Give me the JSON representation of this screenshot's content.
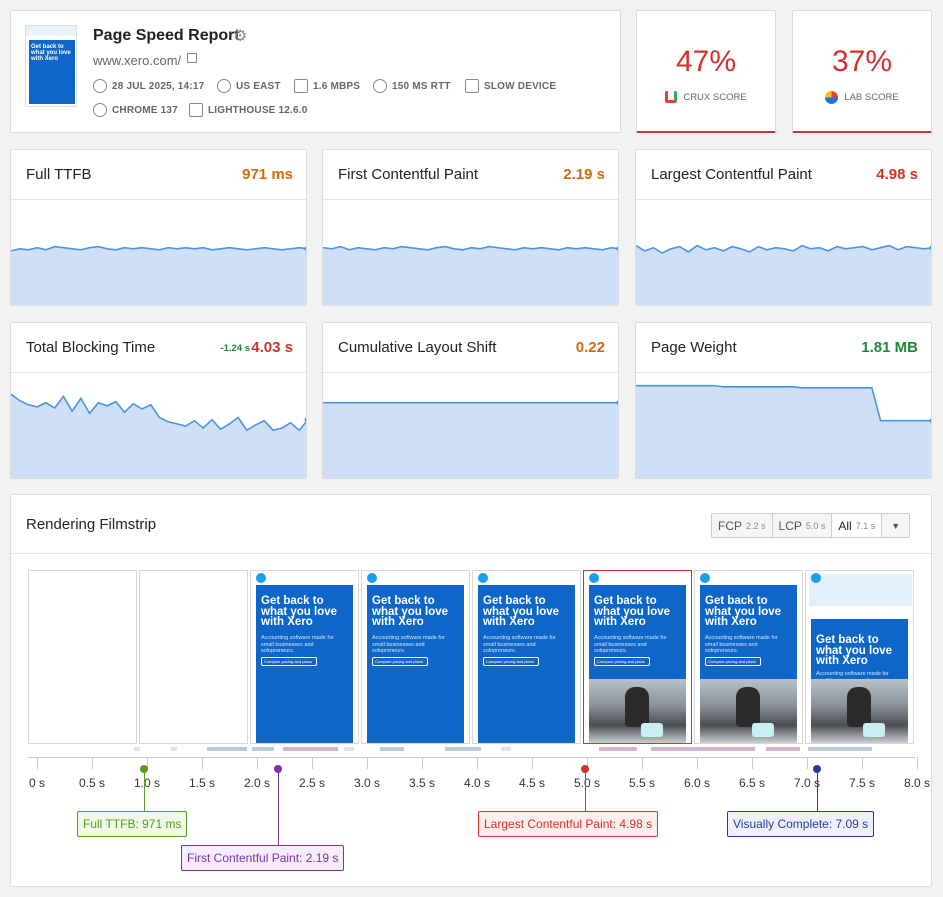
{
  "header": {
    "title": "Page Speed Report",
    "url": "www.xero.com/",
    "meta": {
      "date": "28 JUL 2025, 14:17",
      "location": "US EAST",
      "bandwidth": "1.6 MBPS",
      "rtt": "150 MS RTT",
      "device": "SLOW DEVICE",
      "browser": "CHROME 137",
      "lighthouse": "LIGHTHOUSE 12.6.0"
    },
    "thumbnail_text": "Get back to what you love with Xero"
  },
  "scores": {
    "crux": {
      "value": "47%",
      "label": "CRUX SCORE"
    },
    "lab": {
      "value": "37%",
      "label": "LAB SCORE"
    }
  },
  "metrics": [
    {
      "name": "Full TTFB",
      "value": "971 ms",
      "status": "orange",
      "trend": [
        52,
        54,
        53,
        55,
        53,
        56,
        55,
        54,
        53,
        55,
        56,
        54,
        53,
        55,
        54,
        55,
        54,
        53,
        55,
        54,
        55,
        54,
        55,
        53,
        54,
        55,
        54,
        53,
        54,
        55,
        54,
        53,
        54,
        55,
        54
      ]
    },
    {
      "name": "First Contentful Paint",
      "value": "2.19 s",
      "status": "orange",
      "trend": [
        55,
        54,
        56,
        53,
        55,
        54,
        53,
        55,
        54,
        56,
        55,
        54,
        53,
        55,
        56,
        54,
        53,
        55,
        54,
        56,
        55,
        54,
        53,
        55,
        54,
        55,
        54,
        53,
        55,
        54,
        55,
        54,
        53,
        55,
        54
      ]
    },
    {
      "name": "Largest Contentful Paint",
      "value": "4.98 s",
      "status": "red",
      "trend": [
        57,
        52,
        55,
        50,
        54,
        56,
        51,
        57,
        53,
        55,
        52,
        56,
        54,
        51,
        56,
        53,
        55,
        54,
        52,
        57,
        54,
        55,
        52,
        56,
        54,
        55,
        56,
        53,
        55,
        57,
        53,
        56,
        55,
        54,
        55
      ]
    },
    {
      "name": "Total Blocking Time",
      "value": "4.03 s",
      "delta": "-1.24 s",
      "status": "red",
      "trend": [
        80,
        74,
        70,
        68,
        72,
        67,
        78,
        64,
        76,
        62,
        72,
        69,
        73,
        63,
        71,
        66,
        70,
        58,
        54,
        52,
        50,
        55,
        48,
        56,
        47,
        52,
        58,
        46,
        51,
        55,
        46,
        48,
        53,
        46,
        56
      ]
    },
    {
      "name": "Cumulative Layout Shift",
      "value": "0.22",
      "status": "orange",
      "trend": [
        72,
        72,
        72,
        72,
        72,
        72,
        72,
        72,
        72,
        72,
        72,
        72,
        72,
        72,
        72,
        72,
        72,
        72,
        72,
        72,
        72,
        72,
        72,
        72,
        72,
        72,
        72,
        72,
        72,
        72,
        72,
        72,
        72,
        72,
        72
      ]
    },
    {
      "name": "Page Weight",
      "value": "1.81 MB",
      "status": "green",
      "trend": [
        88,
        88,
        88,
        88,
        88,
        88,
        88,
        88,
        88,
        88,
        87,
        87,
        87,
        87,
        87,
        87,
        87,
        87,
        87,
        86,
        86,
        86,
        86,
        86,
        86,
        86,
        86,
        86,
        55,
        55,
        55,
        55,
        55,
        55,
        55
      ]
    }
  ],
  "filmstrip": {
    "title": "Rendering Filmstrip",
    "toggles": [
      {
        "label": "FCP",
        "time": "2.2 s"
      },
      {
        "label": "LCP",
        "time": "5.0 s"
      },
      {
        "label": "All",
        "time": "7.1 s"
      }
    ],
    "dropdown_icon": "caret-down-icon",
    "frame_headline": "Get back to what you love with Xero",
    "frame_sub": "Accounting software made for small businesses and solopreneurs.",
    "frame_button": "Compare pricing and plans",
    "ticks": [
      "0 s",
      "0.5 s",
      "1.0 s",
      "1.5 s",
      "2.0 s",
      "2.5 s",
      "3.0 s",
      "3.5 s",
      "4.0 s",
      "4.5 s",
      "5.0 s",
      "5.5 s",
      "6.0 s",
      "6.5 s",
      "7.0 s",
      "7.5 s",
      "8.0 s"
    ],
    "markers": [
      {
        "label": "Full TTFB: 971 ms",
        "time": 0.971,
        "color": "#5a9a1f",
        "bg": "#f0f8e6"
      },
      {
        "label": "First Contentful Paint: 2.19 s",
        "time": 2.19,
        "color": "#7b32a8",
        "bg": "#f6ecfb"
      },
      {
        "label": "Largest Contentful Paint: 4.98 s",
        "time": 4.98,
        "color": "#d4312c",
        "bg": "#fdeeee"
      },
      {
        "label": "Visually Complete: 7.09 s",
        "time": 7.09,
        "color": "#2a3a9e",
        "bg": "#eef0fb"
      }
    ]
  },
  "colors": {
    "chart_fill": "#cfe0f6",
    "chart_line": "#4a94e2"
  }
}
